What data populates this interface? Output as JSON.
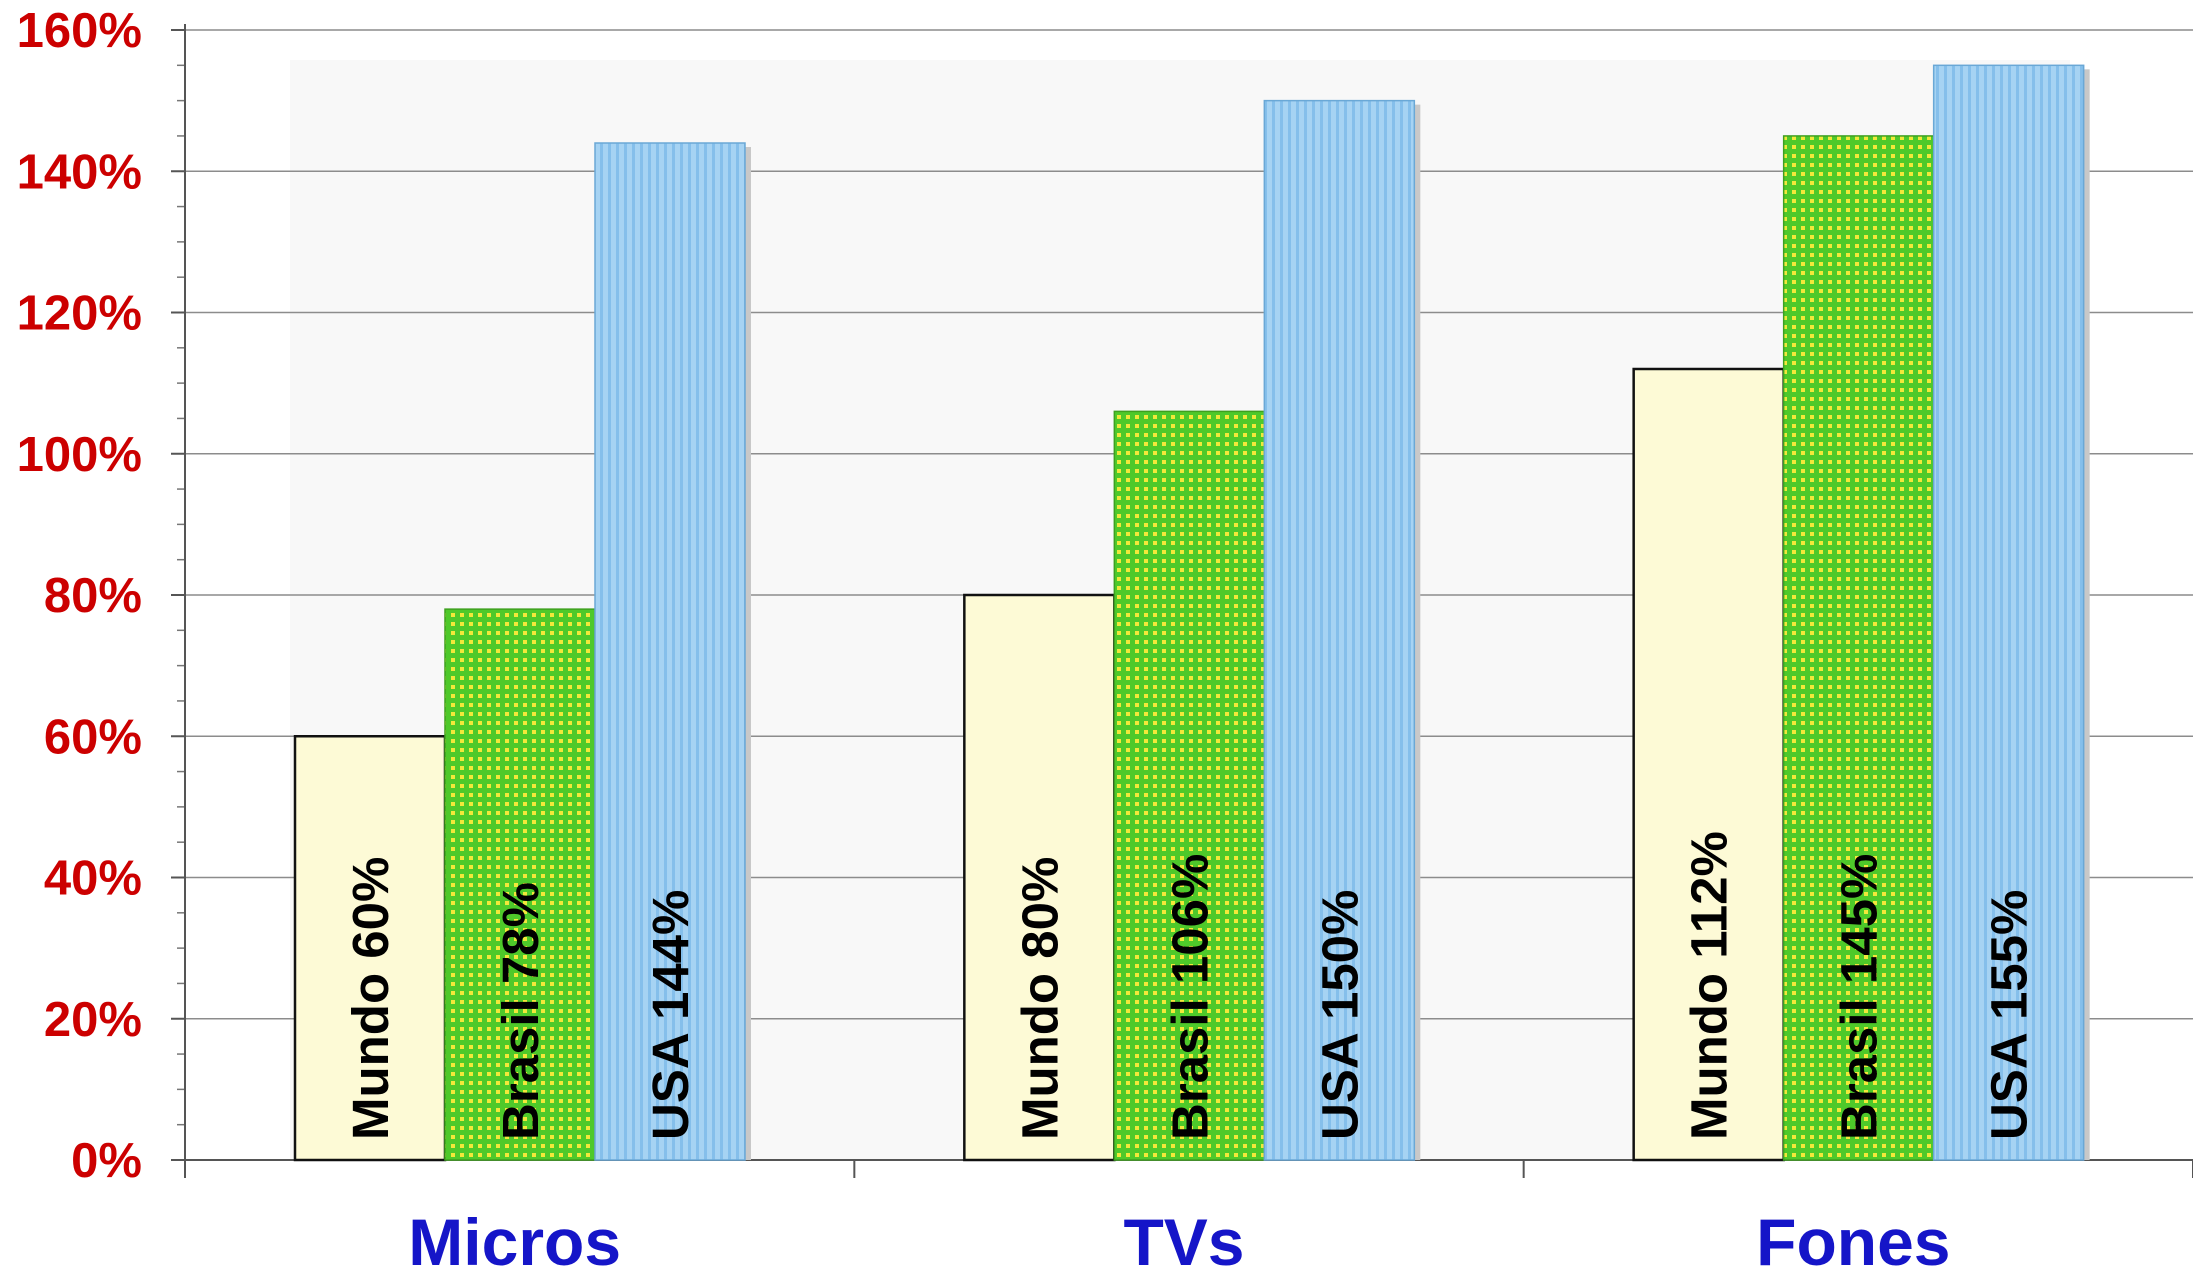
{
  "chart_data": {
    "type": "bar",
    "categories": [
      "Micros",
      "TVs",
      "Fones"
    ],
    "series": [
      {
        "name": "Mundo",
        "values": [
          60,
          80,
          112
        ],
        "labels": [
          "Mundo 60%",
          "Mundo 80%",
          "Mundo 112%"
        ]
      },
      {
        "name": "Brasil",
        "values": [
          78,
          106,
          145
        ],
        "labels": [
          "Brasil 78%",
          "Brasil 106%",
          "Brasil 145%"
        ]
      },
      {
        "name": "USA",
        "values": [
          144,
          150,
          155
        ],
        "labels": [
          "USA 144%",
          "USA 150%",
          "USA 155%"
        ]
      }
    ],
    "y_ticks": [
      "0%",
      "20%",
      "40%",
      "60%",
      "80%",
      "100%",
      "120%",
      "140%",
      "160%"
    ],
    "ylim": [
      0,
      160
    ],
    "y_tick_step": 20,
    "grid": true,
    "legend": "none",
    "title": "",
    "xlabel": "",
    "ylabel": "",
    "colors": {
      "mundo_fill": "#fdfad6",
      "brasil_fill": "#4ec92a",
      "brasil_dot": "#f2e83a",
      "usa_fill": "#a6d3f3",
      "usa_stripe": "#85bfeb",
      "tick_label": "#cc0000",
      "category_label": "#1515c8",
      "grid": "#8c8c8c"
    }
  }
}
